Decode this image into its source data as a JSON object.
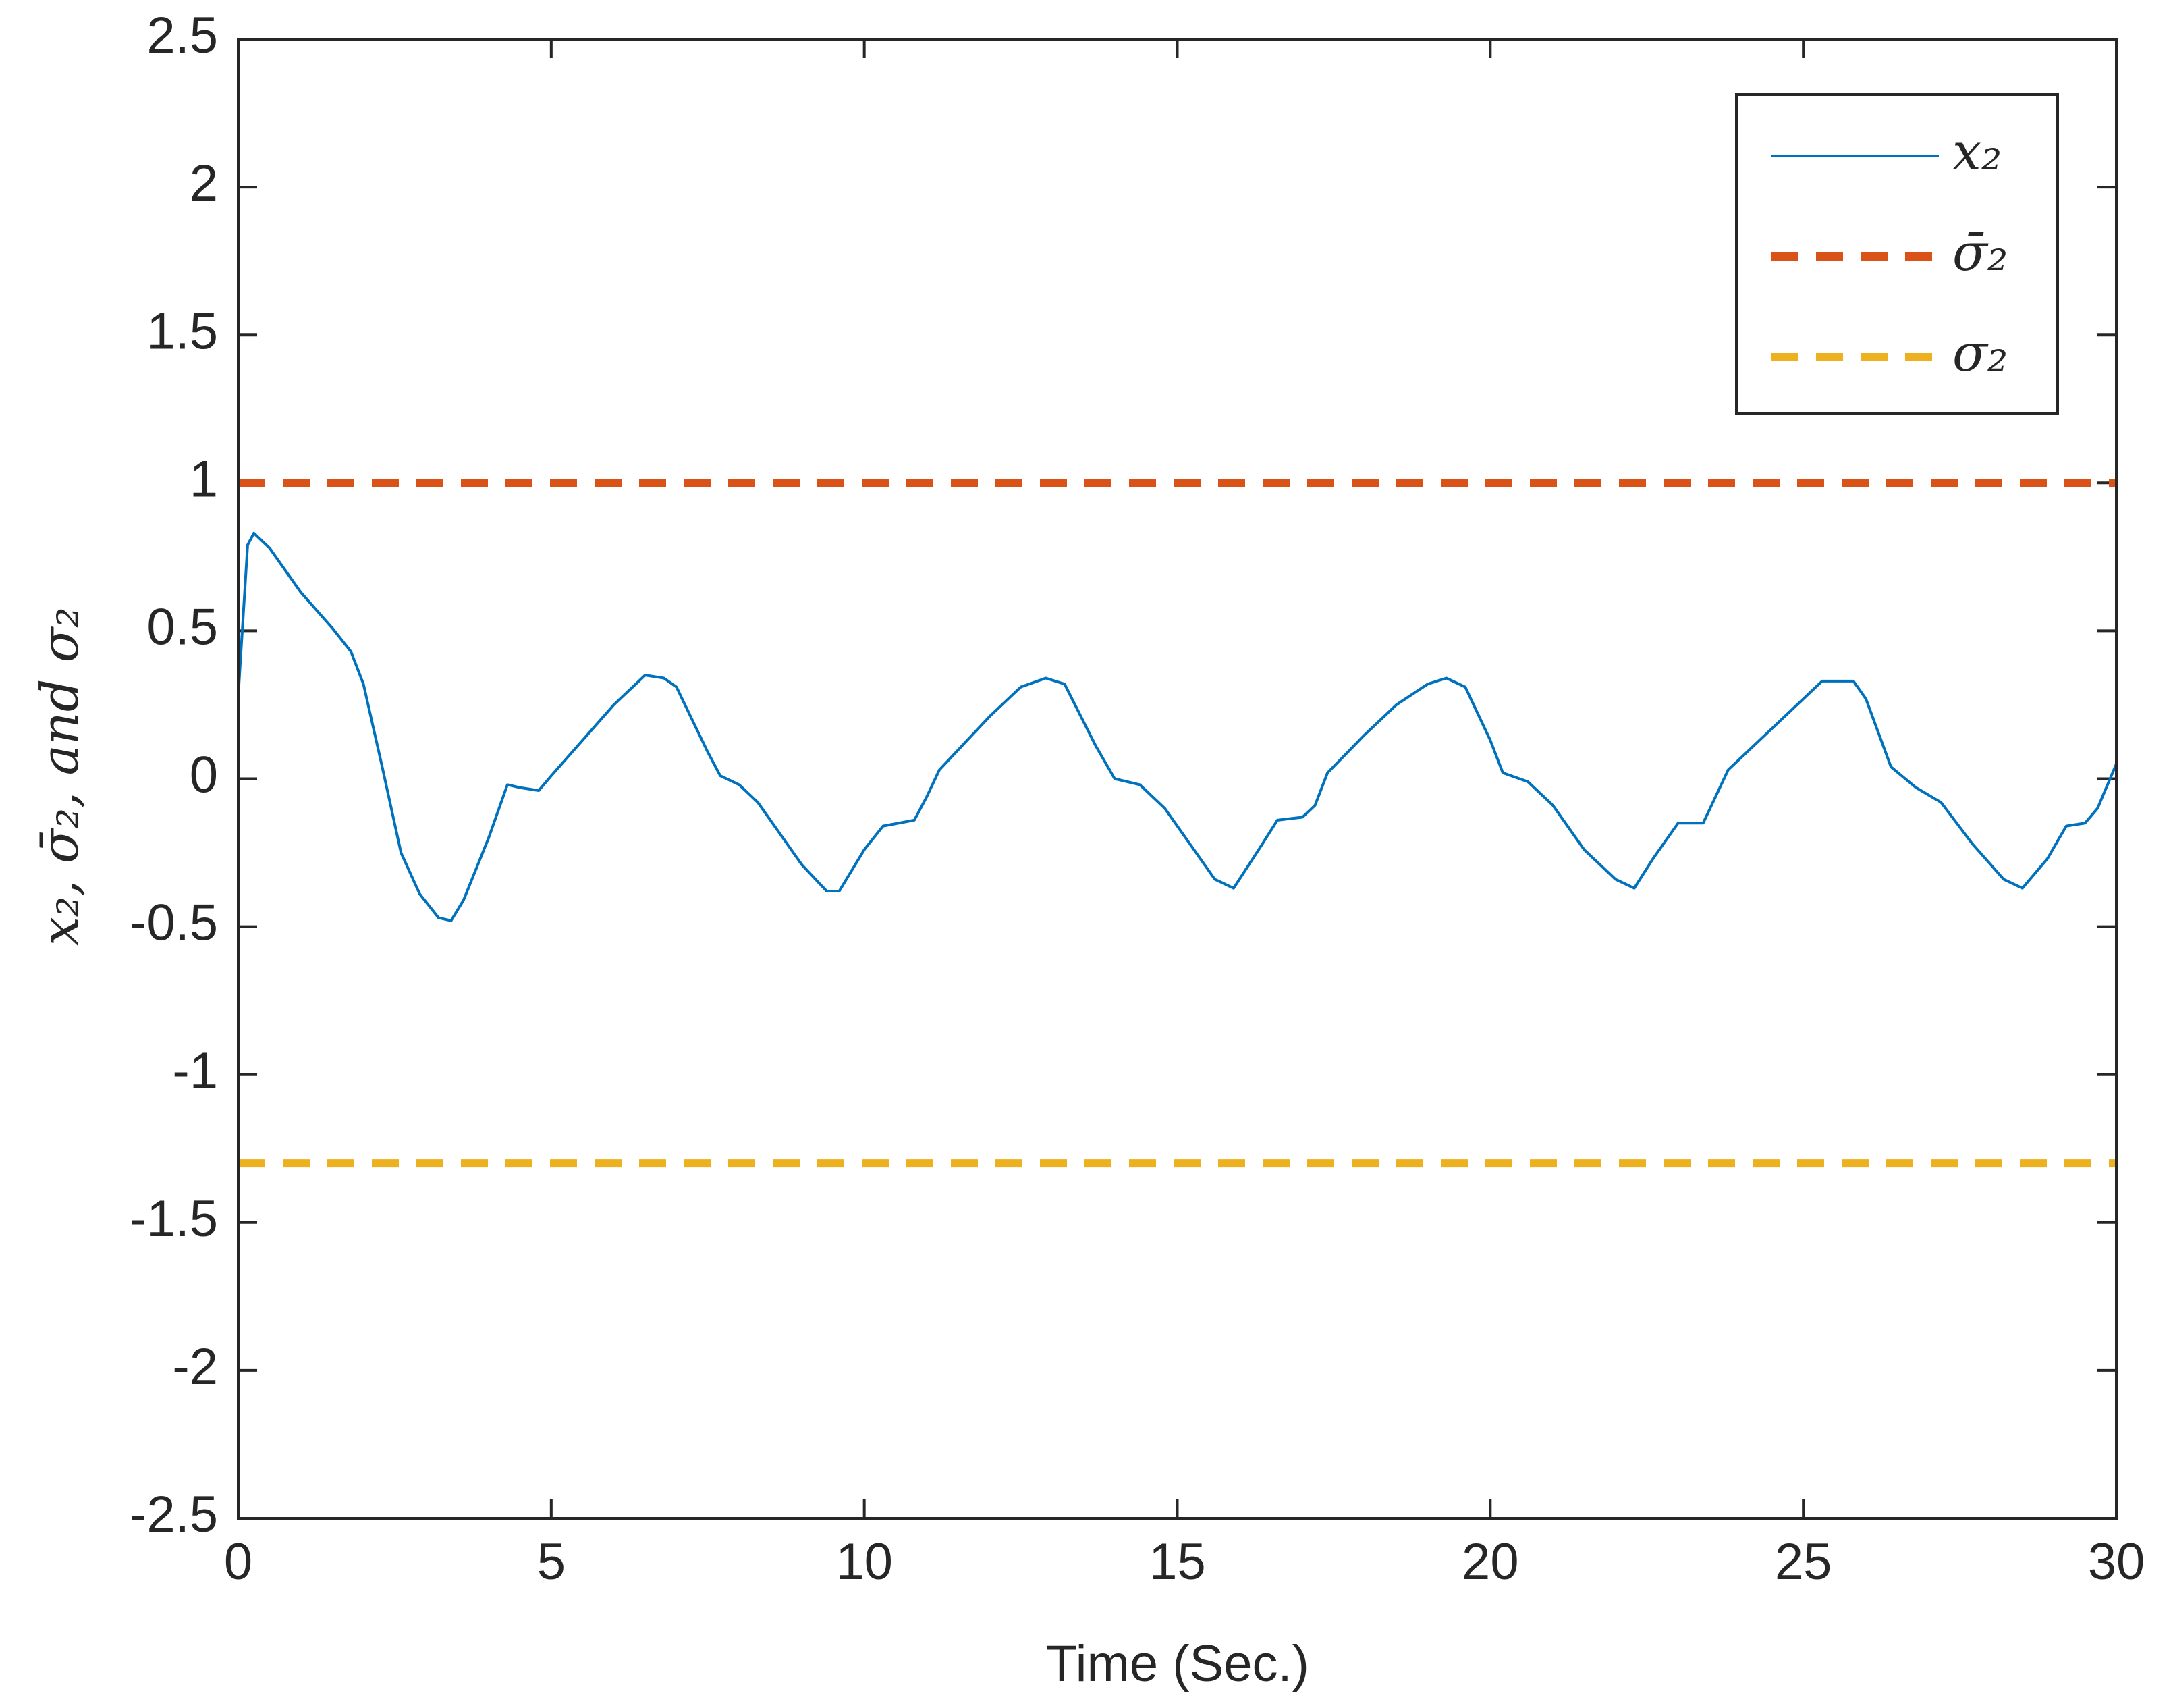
{
  "chart_data": {
    "type": "line",
    "xlabel": "Time (Sec.)",
    "ylabel": "x₂,  σ̄₂,  and σ₂",
    "xlim": [
      0,
      30
    ],
    "xticks": [
      0,
      5,
      10,
      15,
      20,
      25,
      30
    ],
    "ylim": [
      -2.5,
      2.5
    ],
    "yticks": [
      -2.5,
      -2,
      -1.5,
      -1,
      -0.5,
      0,
      0.5,
      1,
      1.5,
      2,
      2.5
    ],
    "legend": "upper right",
    "series": [
      {
        "name": "x₂",
        "color": "#0072bd",
        "linestyle": "solid",
        "x": [
          0,
          0.15,
          0.25,
          0.5,
          1,
          1.5,
          1.8,
          2.0,
          2.3,
          2.6,
          2.9,
          3.2,
          3.4,
          3.6,
          4.0,
          4.3,
          4.5,
          4.8,
          5.0,
          5.5,
          6.0,
          6.5,
          6.8,
          7.0,
          7.5,
          7.7,
          8.0,
          8.3,
          8.7,
          9.0,
          9.4,
          9.6,
          10.0,
          10.3,
          10.8,
          11.0,
          11.2,
          11.6,
          12.0,
          12.5,
          12.9,
          13.2,
          13.7,
          14.0,
          14.4,
          14.8,
          15.2,
          15.6,
          15.9,
          16.3,
          16.6,
          17.0,
          17.2,
          17.4,
          18.0,
          18.5,
          19.0,
          19.3,
          19.6,
          20.0,
          20.2,
          20.6,
          21.0,
          21.5,
          22.0,
          22.3,
          22.6,
          23.0,
          23.4,
          23.6,
          23.8,
          24.3,
          24.8,
          25.3,
          25.8,
          26.0,
          26.4,
          26.8,
          27.2,
          27.7,
          28.2,
          28.5,
          28.9,
          29.2,
          29.5,
          29.7,
          30.0
        ],
        "values": [
          0.28,
          0.79,
          0.83,
          0.78,
          0.63,
          0.51,
          0.43,
          0.32,
          0.04,
          -0.25,
          -0.39,
          -0.47,
          -0.48,
          -0.41,
          -0.2,
          -0.02,
          -0.03,
          -0.04,
          0.01,
          0.13,
          0.25,
          0.35,
          0.34,
          0.31,
          0.09,
          0.01,
          -0.02,
          -0.08,
          -0.2,
          -0.29,
          -0.38,
          -0.38,
          -0.24,
          -0.16,
          -0.14,
          -0.06,
          0.03,
          0.12,
          0.21,
          0.31,
          0.34,
          0.32,
          0.11,
          0.0,
          -0.02,
          -0.1,
          -0.22,
          -0.34,
          -0.37,
          -0.24,
          -0.14,
          -0.13,
          -0.09,
          0.02,
          0.15,
          0.25,
          0.32,
          0.34,
          0.31,
          0.13,
          0.02,
          -0.01,
          -0.09,
          -0.24,
          -0.34,
          -0.37,
          -0.27,
          -0.15,
          -0.15,
          -0.06,
          0.03,
          0.13,
          0.23,
          0.33,
          0.33,
          0.27,
          0.04,
          -0.03,
          -0.08,
          -0.22,
          -0.34,
          -0.37,
          -0.27,
          -0.16,
          -0.15,
          -0.1,
          0.05
        ]
      },
      {
        "name": "σ̄₂",
        "color": "#d95319",
        "linestyle": "dashed",
        "x": [
          0,
          30
        ],
        "values": [
          1,
          1
        ]
      },
      {
        "name": "σ₂",
        "color": "#edb120",
        "linestyle": "dashed",
        "x": [
          0,
          30
        ],
        "values": [
          -1.3,
          -1.3
        ]
      }
    ]
  }
}
